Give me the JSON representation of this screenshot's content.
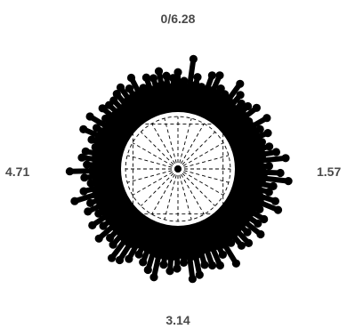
{
  "chart_data": {
    "type": "polar-lollipop",
    "title": "",
    "axis_labels": {
      "top": "0/6.28",
      "right": "1.57",
      "bottom": "3.14",
      "left": "4.71"
    },
    "theta_range": [
      0,
      6.28
    ],
    "r_range": [
      0,
      4
    ],
    "inner_circle_r": 2.0,
    "grid": true,
    "marker_color": "#000000",
    "center_fill": "#ffffff",
    "radial_grid_spokes": 24,
    "theta": [
      0.0,
      0.07,
      0.14,
      0.21,
      0.28,
      0.35,
      0.42,
      0.49,
      0.56,
      0.63,
      0.7,
      0.77,
      0.84,
      0.91,
      0.98,
      1.05,
      1.12,
      1.19,
      1.26,
      1.33,
      1.4,
      1.47,
      1.54,
      1.61,
      1.68,
      1.75,
      1.82,
      1.89,
      1.96,
      2.03,
      2.1,
      2.17,
      2.24,
      2.31,
      2.38,
      2.45,
      2.52,
      2.59,
      2.66,
      2.73,
      2.8,
      2.87,
      2.94,
      3.01,
      3.08,
      3.15,
      3.22,
      3.29,
      3.36,
      3.43,
      3.5,
      3.57,
      3.64,
      3.71,
      3.78,
      3.85,
      3.92,
      3.99,
      4.06,
      4.13,
      4.2,
      4.27,
      4.34,
      4.41,
      4.48,
      4.55,
      4.62,
      4.69,
      4.76,
      4.83,
      4.9,
      4.97,
      5.04,
      5.11,
      5.18,
      5.25,
      5.32,
      5.39,
      5.46,
      5.53,
      5.6,
      5.67,
      5.74,
      5.81,
      5.88,
      5.95,
      6.02,
      6.09,
      6.16,
      6.23
    ],
    "r": [
      3.4,
      3.1,
      3.9,
      3.3,
      3.0,
      3.5,
      3.6,
      3.2,
      3.1,
      3.7,
      3.4,
      3.2,
      3.3,
      3.5,
      3.0,
      3.6,
      3.2,
      3.4,
      3.1,
      3.3,
      3.5,
      3.8,
      3.2,
      3.6,
      3.9,
      3.4,
      3.3,
      3.6,
      3.8,
      3.2,
      3.5,
      3.4,
      3.7,
      3.3,
      3.6,
      3.5,
      3.2,
      3.9,
      3.4,
      3.7,
      3.6,
      3.5,
      3.8,
      3.9,
      3.3,
      3.5,
      3.6,
      3.4,
      3.9,
      3.7,
      3.5,
      3.3,
      3.6,
      3.8,
      3.9,
      3.5,
      3.4,
      3.7,
      3.3,
      3.6,
      3.2,
      3.5,
      3.3,
      3.8,
      3.4,
      3.1,
      3.3,
      3.8,
      3.2,
      3.4,
      3.3,
      3.0,
      3.2,
      3.6,
      3.2,
      3.6,
      3.1,
      3.4,
      3.3,
      3.3,
      3.4,
      3.5,
      3.3,
      3.6,
      3.1,
      3.4,
      3.3,
      3.5,
      3.3,
      3.2
    ],
    "fill_r": [
      2.9,
      2.8,
      2.9,
      3.0,
      2.8,
      2.9,
      3.0,
      2.9,
      2.8,
      3.0,
      2.9,
      2.8,
      3.0,
      2.9,
      2.8,
      3.0,
      2.9,
      3.0,
      2.8,
      2.9,
      3.0,
      2.9,
      2.8,
      3.0,
      3.0,
      2.9,
      2.8,
      3.0,
      3.1,
      2.9,
      3.0,
      2.9,
      3.0,
      2.8,
      3.0,
      3.0,
      2.9,
      3.1,
      3.0,
      3.0,
      2.9,
      3.0,
      3.1,
      3.1,
      3.0,
      3.0,
      3.1,
      3.0,
      3.1,
      3.0,
      3.0,
      2.9,
      3.0,
      3.1,
      3.1,
      3.0,
      3.0,
      3.0,
      2.9,
      3.0,
      2.9,
      3.0,
      2.9,
      3.0,
      2.9,
      2.8,
      2.9,
      3.0,
      2.8,
      2.9,
      2.9,
      2.8,
      2.9,
      3.0,
      2.8,
      2.9,
      2.8,
      2.9,
      2.9,
      2.8,
      2.9,
      3.0,
      2.9,
      3.0,
      2.8,
      2.9,
      2.9,
      3.0,
      2.9,
      2.8
    ]
  }
}
